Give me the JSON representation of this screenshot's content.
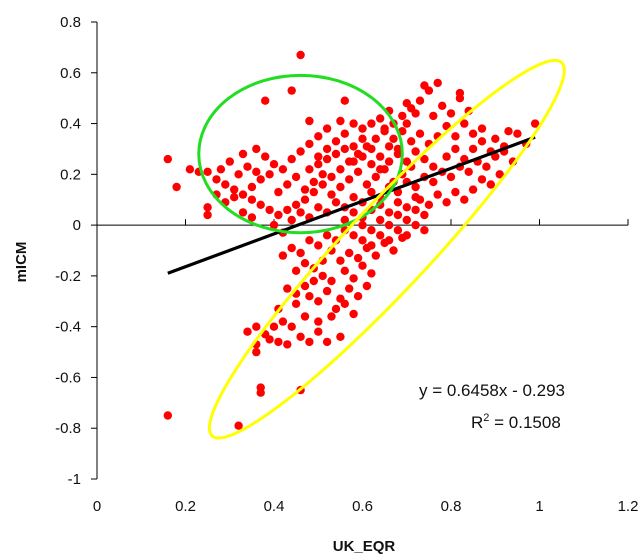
{
  "chart_data": {
    "type": "scatter",
    "title": "",
    "xlabel": "UK_EQR",
    "ylabel": "mICM",
    "xlim": [
      0,
      1.2
    ],
    "ylim": [
      -1,
      0.8
    ],
    "x_ticks": [
      "0",
      "0.2",
      "0.4",
      "0.6",
      "0.8",
      "1",
      "1.2"
    ],
    "y_ticks": [
      "0.8",
      "0.6",
      "0.4",
      "0.2",
      "0",
      "-0.2",
      "-0.4",
      "-0.6",
      "-0.8",
      "-1"
    ],
    "grid": false,
    "legend": "none",
    "series": [
      {
        "marker_color": "#ff0000",
        "points": [
          [
            0.16,
            -0.75
          ],
          [
            0.32,
            -0.79
          ],
          [
            0.37,
            -0.64
          ],
          [
            0.37,
            -0.66
          ],
          [
            0.46,
            -0.65
          ],
          [
            0.36,
            -0.5
          ],
          [
            0.36,
            -0.47
          ],
          [
            0.41,
            -0.46
          ],
          [
            0.43,
            -0.47
          ],
          [
            0.48,
            -0.46
          ],
          [
            0.52,
            -0.46
          ],
          [
            0.55,
            -0.44
          ],
          [
            0.34,
            -0.42
          ],
          [
            0.36,
            -0.4
          ],
          [
            0.38,
            -0.43
          ],
          [
            0.4,
            -0.4
          ],
          [
            0.42,
            -0.38
          ],
          [
            0.44,
            -0.4
          ],
          [
            0.47,
            -0.36
          ],
          [
            0.5,
            -0.38
          ],
          [
            0.53,
            -0.36
          ],
          [
            0.41,
            -0.33
          ],
          [
            0.45,
            -0.31
          ],
          [
            0.48,
            -0.28
          ],
          [
            0.5,
            -0.3
          ],
          [
            0.52,
            -0.26
          ],
          [
            0.55,
            -0.29
          ],
          [
            0.47,
            -0.24
          ],
          [
            0.49,
            -0.22
          ],
          [
            0.51,
            -0.2
          ],
          [
            0.53,
            -0.22
          ],
          [
            0.56,
            -0.18
          ],
          [
            0.58,
            -0.21
          ],
          [
            0.6,
            -0.16
          ],
          [
            0.62,
            -0.19
          ],
          [
            0.55,
            -0.14
          ],
          [
            0.57,
            -0.11
          ],
          [
            0.59,
            -0.13
          ],
          [
            0.61,
            -0.09
          ],
          [
            0.63,
            -0.12
          ],
          [
            0.65,
            -0.07
          ],
          [
            0.67,
            -0.1
          ],
          [
            0.69,
            -0.05
          ],
          [
            0.42,
            -0.12
          ],
          [
            0.44,
            -0.09
          ],
          [
            0.46,
            -0.11
          ],
          [
            0.48,
            -0.06
          ],
          [
            0.5,
            -0.08
          ],
          [
            0.52,
            -0.04
          ],
          [
            0.54,
            -0.06
          ],
          [
            0.56,
            -0.02
          ],
          [
            0.58,
            -0.04
          ],
          [
            0.6,
            0.0
          ],
          [
            0.62,
            -0.02
          ],
          [
            0.64,
            0.02
          ],
          [
            0.66,
            0.0
          ],
          [
            0.68,
            0.04
          ],
          [
            0.7,
            0.02
          ],
          [
            0.72,
            0.06
          ],
          [
            0.74,
            0.04
          ],
          [
            0.44,
            0.02
          ],
          [
            0.46,
            0.05
          ],
          [
            0.48,
            0.03
          ],
          [
            0.5,
            0.07
          ],
          [
            0.52,
            0.05
          ],
          [
            0.54,
            0.09
          ],
          [
            0.56,
            0.07
          ],
          [
            0.58,
            0.11
          ],
          [
            0.6,
            0.09
          ],
          [
            0.62,
            0.13
          ],
          [
            0.64,
            0.11
          ],
          [
            0.66,
            0.15
          ],
          [
            0.68,
            0.13
          ],
          [
            0.7,
            0.17
          ],
          [
            0.72,
            0.15
          ],
          [
            0.74,
            0.19
          ],
          [
            0.76,
            0.17
          ],
          [
            0.78,
            0.21
          ],
          [
            0.8,
            0.19
          ],
          [
            0.82,
            0.23
          ],
          [
            0.84,
            0.21
          ],
          [
            0.86,
            0.25
          ],
          [
            0.88,
            0.23
          ],
          [
            0.9,
            0.27
          ],
          [
            0.92,
            0.29
          ],
          [
            0.95,
            0.36
          ],
          [
            0.97,
            0.32
          ],
          [
            0.99,
            0.4
          ],
          [
            0.93,
            0.37
          ],
          [
            0.87,
            0.38
          ],
          [
            0.84,
            0.45
          ],
          [
            0.82,
            0.5
          ],
          [
            0.8,
            0.44
          ],
          [
            0.78,
            0.47
          ],
          [
            0.77,
            0.56
          ],
          [
            0.75,
            0.53
          ],
          [
            0.73,
            0.49
          ],
          [
            0.71,
            0.46
          ],
          [
            0.69,
            0.43
          ],
          [
            0.67,
            0.4
          ],
          [
            0.65,
            0.37
          ],
          [
            0.63,
            0.34
          ],
          [
            0.61,
            0.31
          ],
          [
            0.59,
            0.28
          ],
          [
            0.57,
            0.25
          ],
          [
            0.55,
            0.22
          ],
          [
            0.53,
            0.19
          ],
          [
            0.51,
            0.16
          ],
          [
            0.49,
            0.13
          ],
          [
            0.47,
            0.1
          ],
          [
            0.45,
            0.08
          ],
          [
            0.43,
            0.06
          ],
          [
            0.41,
            0.04
          ],
          [
            0.39,
            0.06
          ],
          [
            0.37,
            0.08
          ],
          [
            0.35,
            0.1
          ],
          [
            0.33,
            0.12
          ],
          [
            0.31,
            0.14
          ],
          [
            0.29,
            0.16
          ],
          [
            0.27,
            0.18
          ],
          [
            0.25,
            0.21
          ],
          [
            0.23,
            0.21
          ],
          [
            0.21,
            0.22
          ],
          [
            0.16,
            0.26
          ],
          [
            0.18,
            0.15
          ],
          [
            0.25,
            0.04
          ],
          [
            0.25,
            0.07
          ],
          [
            0.3,
            0.25
          ],
          [
            0.33,
            0.28
          ],
          [
            0.36,
            0.3
          ],
          [
            0.38,
            0.27
          ],
          [
            0.4,
            0.24
          ],
          [
            0.42,
            0.22
          ],
          [
            0.44,
            0.26
          ],
          [
            0.46,
            0.29
          ],
          [
            0.48,
            0.32
          ],
          [
            0.5,
            0.27
          ],
          [
            0.52,
            0.3
          ],
          [
            0.54,
            0.33
          ],
          [
            0.56,
            0.36
          ],
          [
            0.58,
            0.31
          ],
          [
            0.6,
            0.34
          ],
          [
            0.62,
            0.3
          ],
          [
            0.64,
            0.27
          ],
          [
            0.66,
            0.31
          ],
          [
            0.68,
            0.28
          ],
          [
            0.7,
            0.25
          ],
          [
            0.72,
            0.29
          ],
          [
            0.74,
            0.26
          ],
          [
            0.76,
            0.23
          ],
          [
            0.79,
            0.27
          ],
          [
            0.81,
            0.3
          ],
          [
            0.83,
            0.26
          ],
          [
            0.85,
            0.3
          ],
          [
            0.38,
            0.49
          ],
          [
            0.44,
            0.53
          ],
          [
            0.46,
            0.67
          ],
          [
            0.56,
            0.49
          ],
          [
            0.74,
            0.55
          ],
          [
            0.82,
            0.52
          ],
          [
            0.35,
            0.15
          ],
          [
            0.37,
            0.18
          ],
          [
            0.39,
            0.2
          ],
          [
            0.41,
            0.13
          ],
          [
            0.43,
            0.16
          ],
          [
            0.45,
            0.19
          ],
          [
            0.47,
            0.14
          ],
          [
            0.49,
            0.17
          ],
          [
            0.51,
            0.2
          ],
          [
            0.53,
            0.12
          ],
          [
            0.55,
            0.15
          ],
          [
            0.57,
            0.18
          ],
          [
            0.59,
            0.21
          ],
          [
            0.61,
            0.16
          ],
          [
            0.63,
            0.19
          ],
          [
            0.65,
            0.22
          ],
          [
            0.67,
            0.17
          ],
          [
            0.69,
            0.2
          ],
          [
            0.71,
            0.23
          ],
          [
            0.73,
            0.1
          ],
          [
            0.75,
            0.08
          ],
          [
            0.77,
            0.12
          ],
          [
            0.79,
            0.09
          ],
          [
            0.81,
            0.13
          ],
          [
            0.83,
            0.1
          ],
          [
            0.85,
            0.14
          ],
          [
            0.87,
            0.18
          ],
          [
            0.89,
            0.16
          ],
          [
            0.91,
            0.2
          ],
          [
            0.6,
            -0.06
          ],
          [
            0.62,
            -0.08
          ],
          [
            0.64,
            -0.04
          ],
          [
            0.66,
            -0.06
          ],
          [
            0.68,
            -0.02
          ],
          [
            0.7,
            -0.04
          ],
          [
            0.72,
            0.0
          ],
          [
            0.74,
            -0.02
          ],
          [
            0.53,
            -0.1
          ],
          [
            0.51,
            -0.14
          ],
          [
            0.49,
            -0.17
          ],
          [
            0.47,
            -0.15
          ],
          [
            0.45,
            -0.18
          ],
          [
            0.57,
            -0.25
          ],
          [
            0.59,
            -0.28
          ],
          [
            0.61,
            -0.24
          ],
          [
            0.45,
            -0.27
          ],
          [
            0.43,
            -0.25
          ],
          [
            0.39,
            -0.45
          ],
          [
            0.56,
            0.02
          ],
          [
            0.58,
            0.05
          ],
          [
            0.6,
            0.03
          ],
          [
            0.62,
            0.06
          ],
          [
            0.64,
            0.08
          ],
          [
            0.66,
            0.05
          ],
          [
            0.68,
            0.09
          ],
          [
            0.7,
            0.07
          ],
          [
            0.72,
            0.11
          ],
          [
            0.48,
            0.22
          ],
          [
            0.5,
            0.24
          ],
          [
            0.52,
            0.26
          ],
          [
            0.54,
            0.28
          ],
          [
            0.56,
            0.3
          ],
          [
            0.58,
            0.25
          ],
          [
            0.6,
            0.27
          ],
          [
            0.62,
            0.24
          ],
          [
            0.32,
            0.2
          ],
          [
            0.34,
            0.23
          ],
          [
            0.36,
            0.21
          ],
          [
            0.28,
            0.22
          ],
          [
            0.27,
            0.12
          ],
          [
            0.29,
            0.09
          ],
          [
            0.31,
            0.11
          ],
          [
            0.33,
            0.05
          ],
          [
            0.35,
            0.03
          ],
          [
            0.4,
            0.0
          ],
          [
            0.42,
            -0.03
          ],
          [
            0.54,
            -0.33
          ],
          [
            0.56,
            -0.31
          ],
          [
            0.58,
            -0.35
          ],
          [
            0.5,
            -0.42
          ],
          [
            0.46,
            -0.44
          ],
          [
            0.77,
            0.35
          ],
          [
            0.75,
            0.32
          ],
          [
            0.73,
            0.36
          ],
          [
            0.71,
            0.33
          ],
          [
            0.69,
            0.37
          ],
          [
            0.67,
            0.34
          ],
          [
            0.65,
            0.38
          ],
          [
            0.79,
            0.39
          ],
          [
            0.81,
            0.35
          ],
          [
            0.83,
            0.4
          ],
          [
            0.85,
            0.36
          ],
          [
            0.87,
            0.33
          ],
          [
            0.89,
            0.29
          ],
          [
            0.76,
            0.43
          ],
          [
            0.7,
            0.4
          ],
          [
            0.68,
            0.3
          ],
          [
            0.66,
            0.25
          ],
          [
            0.64,
            0.22
          ],
          [
            0.9,
            0.34
          ],
          [
            0.92,
            0.31
          ],
          [
            0.94,
            0.25
          ],
          [
            0.62,
            0.4
          ],
          [
            0.6,
            0.38
          ],
          [
            0.58,
            0.4
          ],
          [
            0.55,
            0.41
          ],
          [
            0.52,
            0.38
          ],
          [
            0.5,
            0.35
          ],
          [
            0.48,
            0.41
          ],
          [
            0.66,
            0.45
          ],
          [
            0.64,
            0.42
          ],
          [
            0.7,
            0.48
          ],
          [
            0.72,
            0.44
          ]
        ]
      }
    ],
    "trendline": {
      "slope": 0.6458,
      "intercept": -0.293,
      "x_range": [
        0.16,
        0.99
      ],
      "color": "#000000"
    },
    "annotations": {
      "equation": "y = 0.6458x - 0.293",
      "r2_prefix": "R",
      "r2_sup": "2",
      "r2_suffix": " = 0.1508"
    },
    "overlays": [
      {
        "shape": "ellipse",
        "color": "#22dd22",
        "center": [
          0.46,
          0.28
        ],
        "rx_data": 0.23,
        "ry_data": 0.31,
        "rotation_deg": 0
      },
      {
        "shape": "ellipse",
        "color": "#ffff00",
        "center": [
          0.66,
          -0.09
        ],
        "major_axis_end_a": [
          0.26,
          -0.83
        ],
        "major_axis_end_b": [
          1.05,
          0.64
        ],
        "minor_half_data": 0.095
      }
    ]
  }
}
